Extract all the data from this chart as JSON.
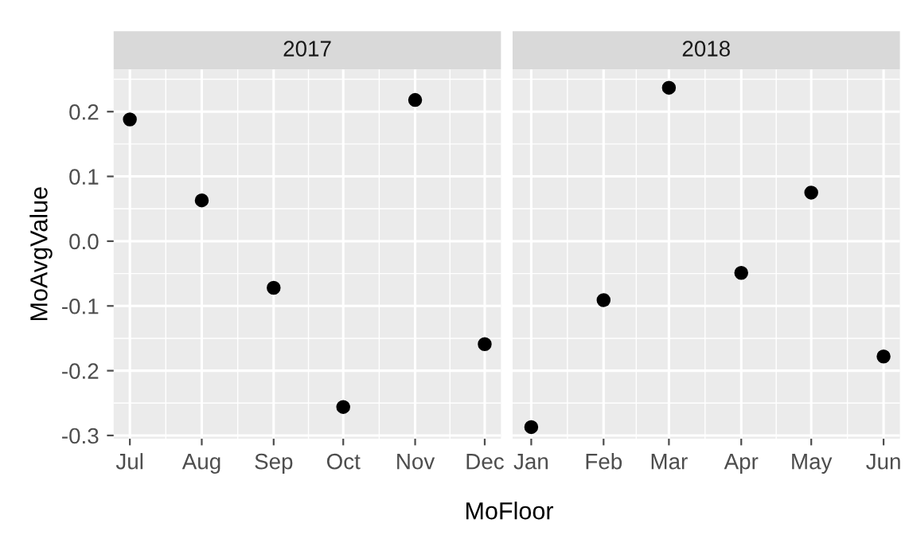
{
  "chart_data": [
    {
      "type": "scatter",
      "title": "2017",
      "ylabel": "MoAvgValue",
      "xlabel": "MoFloor",
      "marker": "circle",
      "grid": true,
      "x": [
        "2017-07-01",
        "2017-08-01",
        "2017-09-01",
        "2017-10-01",
        "2017-11-01",
        "2017-12-01"
      ],
      "series": [
        {
          "color": "#000000",
          "values": [
            0.188,
            0.063,
            -0.072,
            -0.256,
            0.218,
            -0.159
          ]
        }
      ],
      "xlim": [
        "2017-06-24",
        "2017-12-08"
      ],
      "ylim": [
        -0.305,
        0.265
      ],
      "yticks": [
        -0.3,
        -0.2,
        -0.1,
        {
          "value": 0,
          "label": "0.0"
        },
        0.1,
        0.2
      ],
      "xticks": [
        {
          "value": "2017-07-01",
          "label": "Jul"
        },
        {
          "value": "2017-08-01",
          "label": "Aug"
        },
        {
          "value": "2017-09-01",
          "label": "Sep"
        },
        {
          "value": "2017-10-01",
          "label": "Oct"
        },
        {
          "value": "2017-11-01",
          "label": "Nov"
        },
        {
          "value": "2017-12-01",
          "label": "Dec"
        }
      ]
    },
    {
      "type": "scatter",
      "title": "2018",
      "marker": "circle",
      "grid": true,
      "tick_labels": "x",
      "x": [
        "2018-01-01",
        "2018-02-01",
        "2018-03-01",
        "2018-04-01",
        "2018-05-01",
        "2018-06-01"
      ],
      "series": [
        {
          "color": "#000000",
          "values": [
            -0.287,
            -0.091,
            0.237,
            -0.049,
            0.075,
            -0.178
          ]
        }
      ],
      "xlim": [
        "2017-12-24",
        "2018-06-08"
      ],
      "ylim": [
        -0.305,
        0.265
      ],
      "yticks": [
        -0.3,
        -0.2,
        -0.1,
        0,
        0.1,
        0.2
      ],
      "xticks": [
        {
          "value": "2018-01-01",
          "label": "Jan"
        },
        {
          "value": "2018-02-01",
          "label": "Feb"
        },
        {
          "value": "2018-03-01",
          "label": "Mar"
        },
        {
          "value": "2018-04-01",
          "label": "Apr"
        },
        {
          "value": "2018-05-01",
          "label": "May"
        },
        {
          "value": "2018-06-01",
          "label": "Jun"
        }
      ]
    }
  ]
}
